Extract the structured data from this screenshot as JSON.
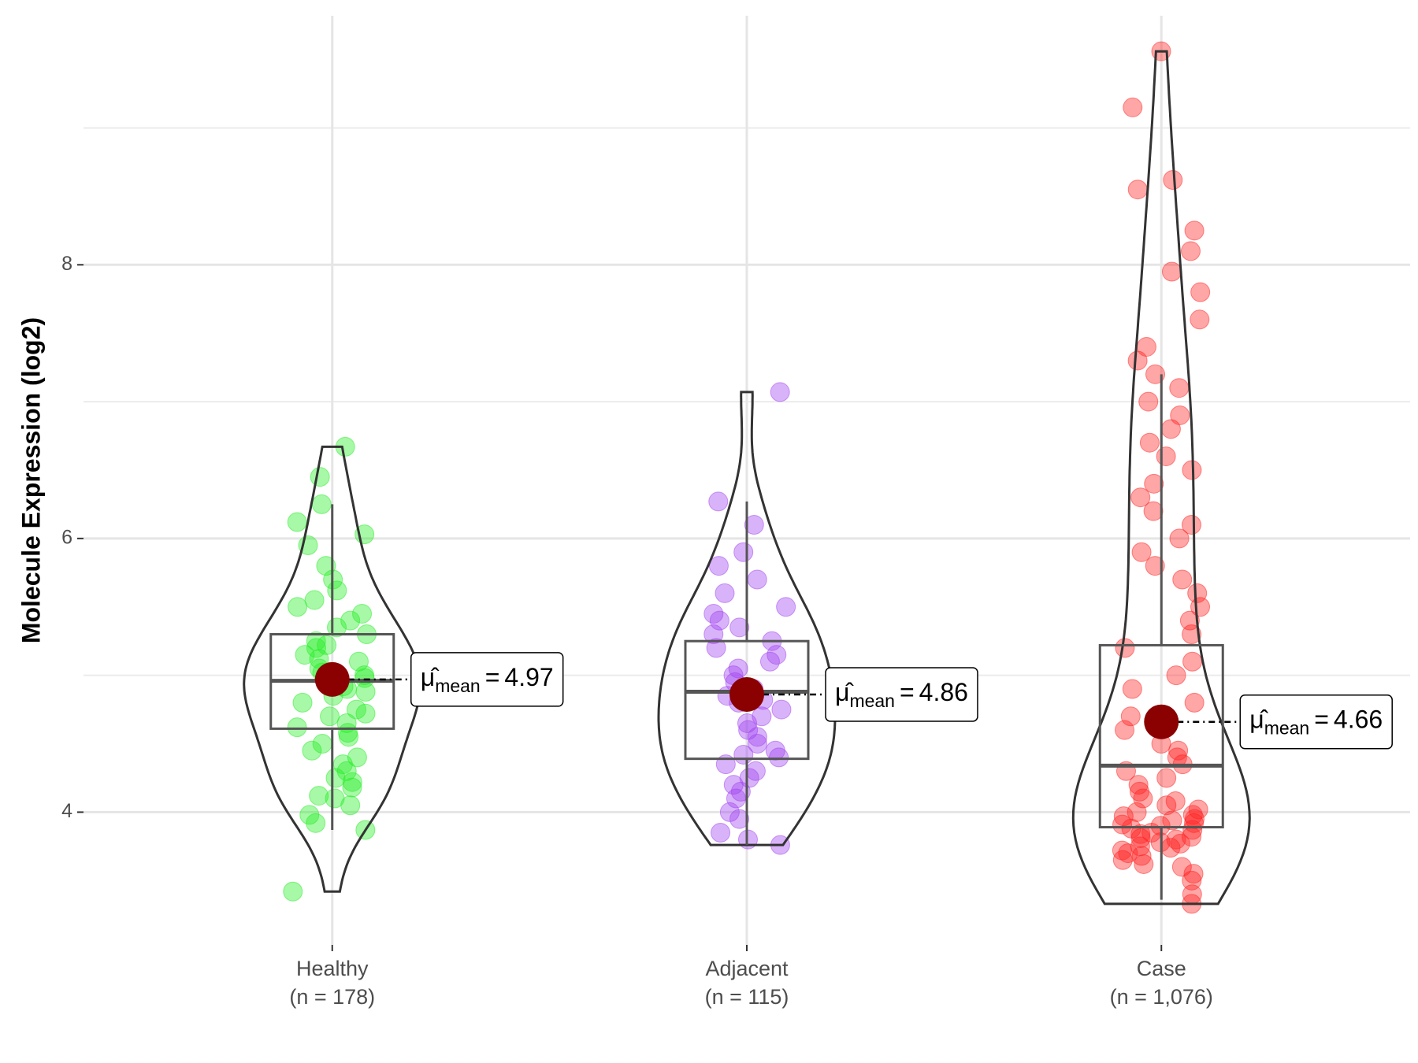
{
  "chart_data": {
    "type": "violin",
    "y_label": "Molecule Expression (log2)",
    "ylim": [
      3.03,
      9.82
    ],
    "yticks": [
      4,
      6,
      8
    ],
    "minor_grid": [
      5,
      7,
      9
    ],
    "grid": true,
    "mean_symbol": "μ̂",
    "mean_subscript": "mean",
    "equals": "=",
    "mean_color": "#8b0000",
    "series": [
      {
        "name": "Healthy",
        "n_label": "(n = 178)",
        "color": "#22ee22",
        "whisker_low": 3.87,
        "q1": 4.61,
        "median": 4.96,
        "q3": 5.3,
        "whisker_high": 6.25,
        "mean": 4.97,
        "points": [
          3.42,
          3.87,
          3.92,
          3.98,
          4.05,
          4.1,
          4.12,
          4.18,
          4.22,
          4.25,
          4.3,
          4.35,
          4.4,
          4.45,
          4.5,
          4.55,
          4.58,
          4.62,
          4.65,
          4.7,
          4.72,
          4.75,
          4.8,
          4.85,
          4.88,
          4.9,
          4.92,
          4.95,
          4.98,
          5.0,
          5.02,
          5.05,
          5.1,
          5.12,
          5.15,
          5.2,
          5.22,
          5.25,
          5.3,
          5.35,
          5.4,
          5.45,
          5.5,
          5.55,
          5.62,
          5.7,
          5.8,
          5.95,
          6.03,
          6.12,
          6.25,
          6.45,
          6.67
        ]
      },
      {
        "name": "Adjacent",
        "n_label": "(n = 115)",
        "color": "#a040f0",
        "whisker_low": 3.76,
        "q1": 4.39,
        "median": 4.88,
        "q3": 5.25,
        "whisker_high": 6.27,
        "mean": 4.86,
        "points": [
          3.76,
          3.8,
          3.85,
          3.95,
          4.0,
          4.1,
          4.15,
          4.2,
          4.25,
          4.3,
          4.35,
          4.4,
          4.42,
          4.45,
          4.5,
          4.55,
          4.6,
          4.65,
          4.7,
          4.75,
          4.8,
          4.82,
          4.85,
          4.9,
          4.95,
          5.0,
          5.05,
          5.1,
          5.15,
          5.2,
          5.25,
          5.3,
          5.35,
          5.4,
          5.45,
          5.5,
          5.6,
          5.7,
          5.8,
          5.9,
          6.1,
          6.27,
          7.07
        ]
      },
      {
        "name": "Case",
        "n_label": "(n = 1,076)",
        "color": "#ff2020",
        "whisker_low": 3.36,
        "q1": 3.89,
        "median": 4.34,
        "q3": 5.22,
        "whisker_high": 7.2,
        "mean": 4.66,
        "points": [
          3.33,
          3.4,
          3.5,
          3.55,
          3.6,
          3.62,
          3.65,
          3.68,
          3.7,
          3.72,
          3.74,
          3.75,
          3.77,
          3.78,
          3.8,
          3.81,
          3.82,
          3.84,
          3.85,
          3.87,
          3.88,
          3.9,
          3.91,
          3.92,
          3.94,
          3.95,
          3.97,
          3.98,
          4.0,
          4.02,
          4.05,
          4.08,
          4.1,
          4.15,
          4.2,
          4.25,
          4.3,
          4.35,
          4.4,
          4.45,
          4.5,
          4.6,
          4.7,
          4.8,
          4.9,
          5.0,
          5.1,
          5.2,
          5.3,
          5.4,
          5.5,
          5.6,
          5.7,
          5.8,
          5.9,
          6.0,
          6.1,
          6.2,
          6.3,
          6.4,
          6.5,
          6.6,
          6.7,
          6.8,
          6.9,
          7.0,
          7.1,
          7.2,
          7.3,
          7.4,
          7.6,
          7.8,
          7.95,
          8.1,
          8.25,
          8.55,
          8.62,
          9.15,
          9.56
        ]
      }
    ]
  }
}
